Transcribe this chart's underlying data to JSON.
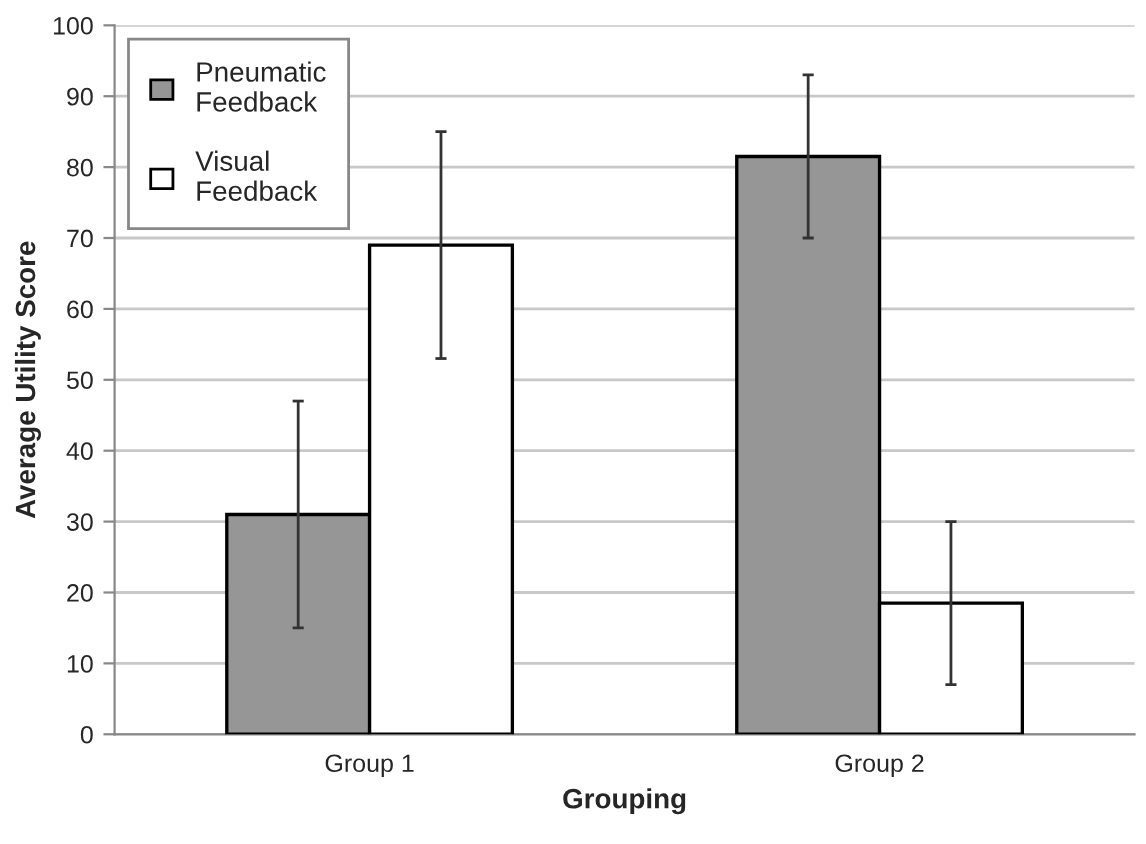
{
  "chart_data": {
    "type": "bar",
    "xlabel": "Grouping",
    "ylabel": "Average Utility Score",
    "categories": [
      "Group 1",
      "Group 2"
    ],
    "series": [
      {
        "name": "Pneumatic\nFeedback",
        "color": "#969696",
        "values": [
          31,
          81.5
        ],
        "errors": [
          [
            15,
            47
          ],
          [
            70,
            93
          ]
        ]
      },
      {
        "name": "Visual\nFeedback",
        "color": "#ffffff",
        "values": [
          69,
          18.5
        ],
        "errors": [
          [
            53,
            85
          ],
          [
            7,
            30
          ]
        ]
      }
    ],
    "ylim": [
      0,
      100
    ],
    "yticks": [
      0,
      10,
      20,
      30,
      40,
      50,
      60,
      70,
      80,
      90,
      100
    ],
    "grid": "y",
    "legend": "top left"
  }
}
